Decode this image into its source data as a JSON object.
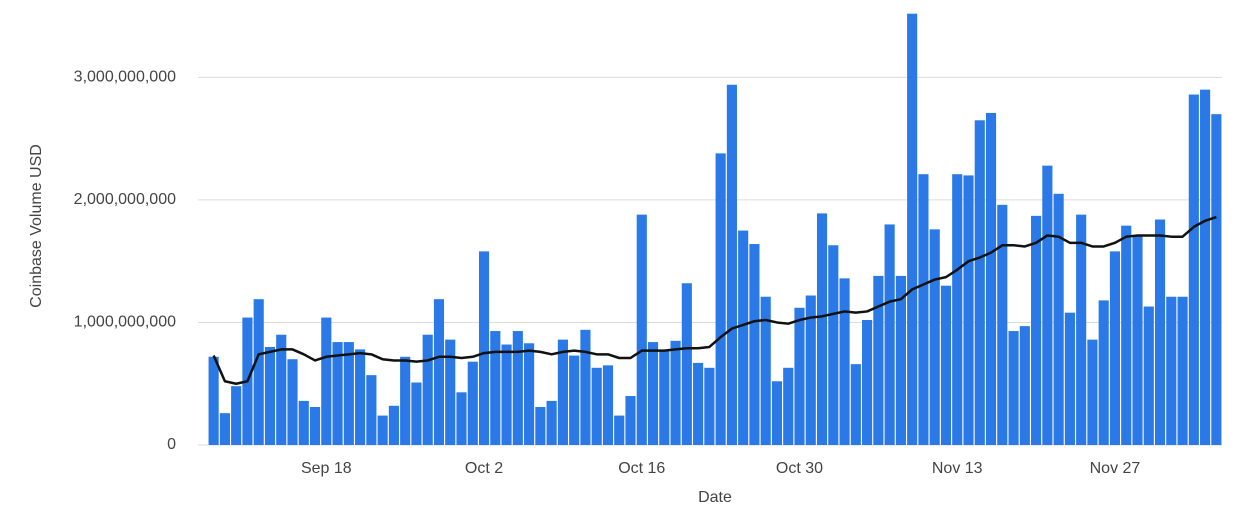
{
  "chart_data": {
    "type": "bar",
    "x_label": "Date",
    "y_label": "Coinbase Volume USD",
    "categories": [
      null,
      null,
      null,
      null,
      null,
      null,
      null,
      null,
      null,
      null,
      "Sep 18",
      null,
      null,
      null,
      null,
      null,
      null,
      null,
      null,
      null,
      null,
      null,
      null,
      null,
      "Oct 2",
      null,
      null,
      null,
      null,
      null,
      null,
      null,
      null,
      null,
      null,
      null,
      null,
      null,
      "Oct 16",
      null,
      null,
      null,
      null,
      null,
      null,
      null,
      null,
      null,
      null,
      null,
      null,
      null,
      "Oct 30",
      null,
      null,
      null,
      null,
      null,
      null,
      null,
      null,
      null,
      null,
      null,
      null,
      null,
      "Nov 13",
      null,
      null,
      null,
      null,
      null,
      null,
      null,
      null,
      null,
      null,
      null,
      null,
      null,
      "Nov 27",
      null,
      null,
      null,
      null,
      null,
      null,
      null,
      null,
      null
    ],
    "series": [
      {
        "type": "bar",
        "color": "#2a79e6",
        "values": [
          720000000,
          260000000,
          480000000,
          1040000000,
          1190000000,
          800000000,
          900000000,
          700000000,
          360000000,
          310000000,
          1040000000,
          840000000,
          840000000,
          780000000,
          570000000,
          240000000,
          320000000,
          720000000,
          510000000,
          900000000,
          1190000000,
          860000000,
          430000000,
          680000000,
          1580000000,
          930000000,
          820000000,
          930000000,
          830000000,
          310000000,
          360000000,
          860000000,
          730000000,
          940000000,
          630000000,
          650000000,
          240000000,
          400000000,
          1880000000,
          840000000,
          770000000,
          850000000,
          1320000000,
          670000000,
          630000000,
          2380000000,
          2940000000,
          1750000000,
          1640000000,
          1210000000,
          520000000,
          630000000,
          1120000000,
          1220000000,
          1890000000,
          1630000000,
          1360000000,
          660000000,
          1020000000,
          1380000000,
          1800000000,
          1380000000,
          3520000000,
          2210000000,
          1760000000,
          1300000000,
          2210000000,
          2200000000,
          2650000000,
          2710000000,
          1960000000,
          930000000,
          970000000,
          1870000000,
          2280000000,
          2050000000,
          1080000000,
          1880000000,
          860000000,
          1180000000,
          1580000000,
          1790000000,
          1710000000,
          1130000000,
          1840000000,
          1210000000,
          1210000000,
          2860000000,
          2900000000,
          2700000000
        ]
      },
      {
        "type": "line",
        "color": "#111111",
        "values": [
          730000000,
          520000000,
          500000000,
          520000000,
          740000000,
          760000000,
          780000000,
          780000000,
          740000000,
          690000000,
          720000000,
          730000000,
          740000000,
          750000000,
          740000000,
          700000000,
          690000000,
          690000000,
          680000000,
          690000000,
          720000000,
          720000000,
          710000000,
          720000000,
          750000000,
          760000000,
          760000000,
          760000000,
          770000000,
          760000000,
          740000000,
          760000000,
          770000000,
          760000000,
          740000000,
          740000000,
          710000000,
          710000000,
          770000000,
          770000000,
          770000000,
          780000000,
          790000000,
          790000000,
          800000000,
          880000000,
          950000000,
          980000000,
          1010000000,
          1020000000,
          1000000000,
          990000000,
          1020000000,
          1040000000,
          1050000000,
          1070000000,
          1090000000,
          1080000000,
          1090000000,
          1130000000,
          1170000000,
          1190000000,
          1270000000,
          1310000000,
          1350000000,
          1370000000,
          1430000000,
          1500000000,
          1530000000,
          1570000000,
          1630000000,
          1630000000,
          1620000000,
          1650000000,
          1710000000,
          1700000000,
          1650000000,
          1650000000,
          1620000000,
          1620000000,
          1650000000,
          1700000000,
          1710000000,
          1710000000,
          1710000000,
          1700000000,
          1700000000,
          1780000000,
          1830000000,
          1860000000
        ]
      }
    ],
    "ylim": [
      0,
      3550000000
    ],
    "yticks": [
      0,
      {
        "value": 1000000000,
        "label": "1,000,000,000"
      },
      {
        "value": 2000000000,
        "label": "2,000,000,000"
      },
      {
        "value": 3000000000,
        "label": "3,000,000,000"
      }
    ],
    "grid": true
  }
}
